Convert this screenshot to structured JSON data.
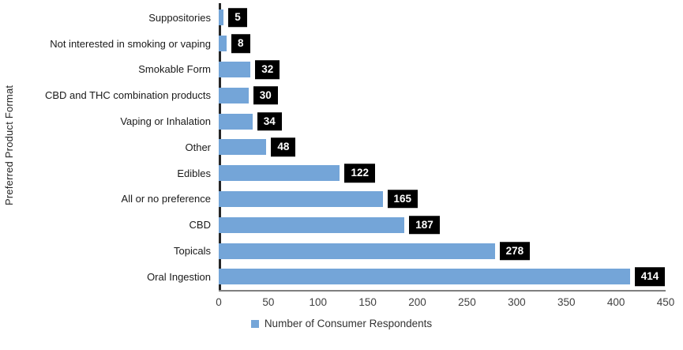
{
  "chart_data": {
    "type": "bar",
    "orientation": "horizontal",
    "categories": [
      "Suppositories",
      "Not interested in smoking or vaping",
      "Smokable Form",
      "CBD and THC combination products",
      "Vaping or Inhalation",
      "Other",
      "Edibles",
      "All or no preference",
      "CBD",
      "Topicals",
      "Oral Ingestion"
    ],
    "values": [
      5,
      8,
      32,
      30,
      34,
      48,
      122,
      165,
      187,
      278,
      414
    ],
    "title": "",
    "xlabel": "",
    "ylabel": "Preferred Product Format",
    "xlim": [
      0,
      450
    ],
    "xticks": [
      0,
      50,
      100,
      150,
      200,
      250,
      300,
      350,
      400,
      450
    ],
    "grid": false,
    "legend_label": "Number of Consumer Respondents",
    "legend_position": "bottom",
    "bar_color": "#74A5D8",
    "value_box_bg": "#000000",
    "value_text_color": "#FFFFFF",
    "axis_line_color": "#262626"
  }
}
